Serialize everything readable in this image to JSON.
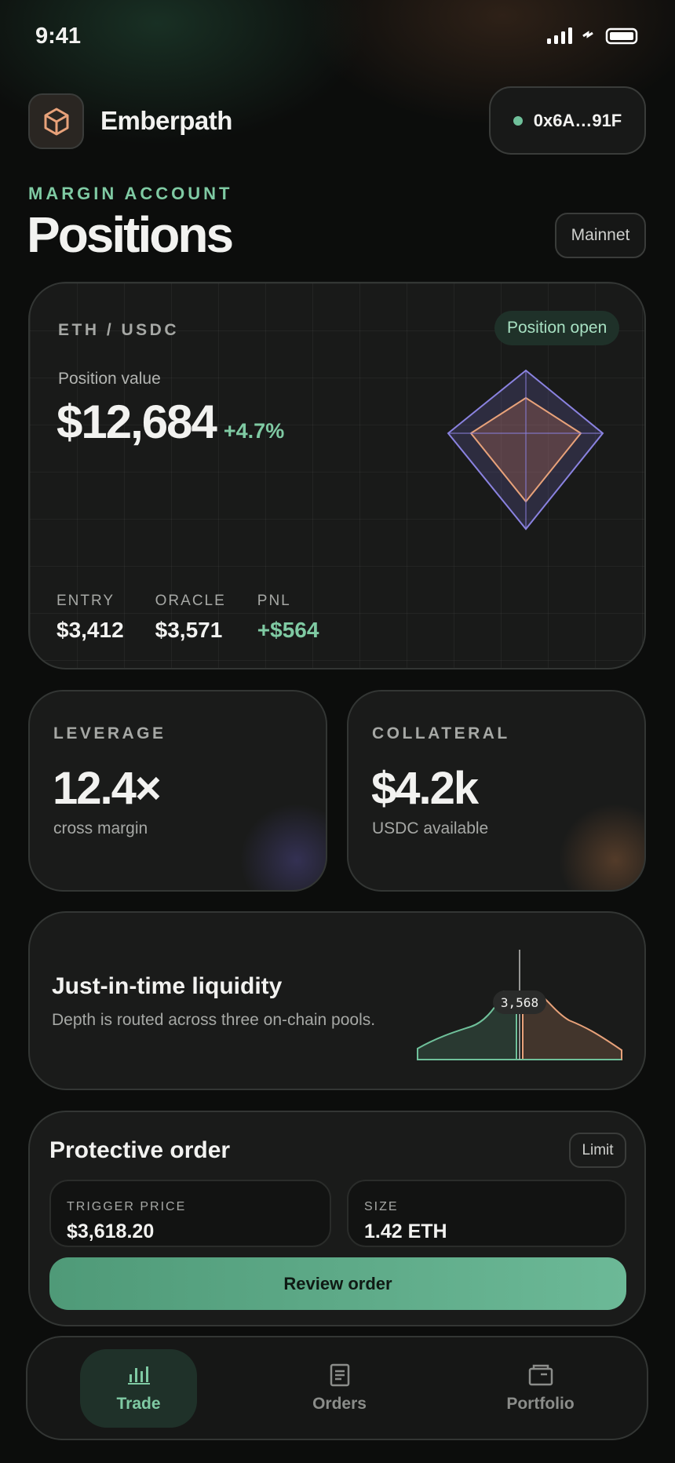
{
  "status_bar": {
    "time": "9:41"
  },
  "header": {
    "app_name": "Emberpath",
    "wallet": "0x6A…91F"
  },
  "page": {
    "eyebrow": "MARGIN ACCOUNT",
    "title": "Positions",
    "network": "Mainnet"
  },
  "position_card": {
    "pair": "ETH / USDC",
    "status": "Position open",
    "value_label": "Position value",
    "value": "$12,684",
    "change": "+4.7%",
    "stats": [
      {
        "label": "ENTRY",
        "value": "$3,412"
      },
      {
        "label": "ORACLE",
        "value": "$3,571"
      },
      {
        "label": "PNL",
        "value": "+$564"
      }
    ]
  },
  "metrics": [
    {
      "label": "LEVERAGE",
      "value": "12.4×",
      "caption": "cross margin"
    },
    {
      "label": "COLLATERAL",
      "value": "$4.2k",
      "caption": "USDC available"
    }
  ],
  "liquidity_card": {
    "title": "Just-in-time liquidity",
    "subtitle": "Depth is routed across three on-chain pools.",
    "depth_label": "3,568"
  },
  "order_card": {
    "title": "Protective order",
    "mode": "Limit",
    "fields": [
      {
        "label": "TRIGGER PRICE",
        "value": "$3,618.20"
      },
      {
        "label": "SIZE",
        "value": "1.42 ETH"
      }
    ],
    "button": "Review order"
  },
  "nav": {
    "tabs": [
      "Trade",
      "Orders",
      "Portfolio"
    ]
  }
}
